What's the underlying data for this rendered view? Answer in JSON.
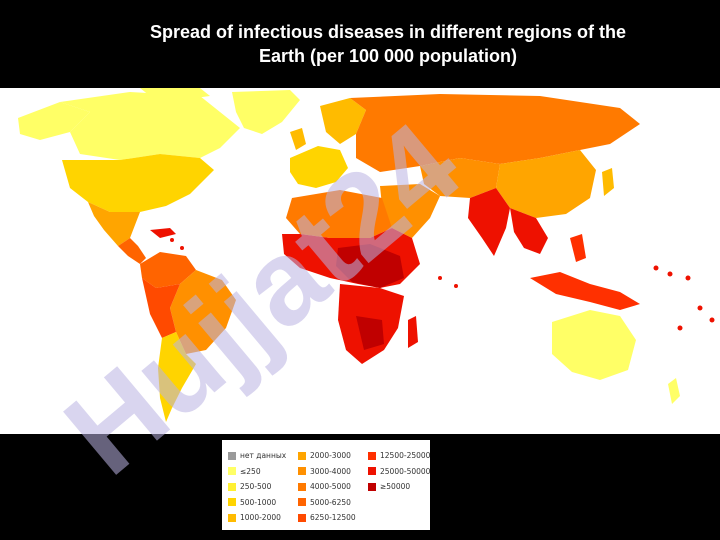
{
  "title": {
    "line1": "Spread of infectious diseases in different regions of the",
    "line2": "Earth (per 100 000 population)"
  },
  "watermark": {
    "text": "Hujjat24",
    "color": "#b9b2e2"
  },
  "legend": {
    "items": [
      {
        "label": "нет данных",
        "color": "#9a9a9a"
      },
      {
        "label": "≤250",
        "color": "#ffff66"
      },
      {
        "label": "250-500",
        "color": "#fff033"
      },
      {
        "label": "500-1000",
        "color": "#ffd400"
      },
      {
        "label": "1000-2000",
        "color": "#ffbb00"
      },
      {
        "label": "2000-3000",
        "color": "#ffa500"
      },
      {
        "label": "3000-4000",
        "color": "#ff9000"
      },
      {
        "label": "4000-5000",
        "color": "#ff7a00"
      },
      {
        "label": "5000-6250",
        "color": "#ff6400"
      },
      {
        "label": "6250-12500",
        "color": "#ff4a00"
      },
      {
        "label": "12500-25000",
        "color": "#ff3000"
      },
      {
        "label": "25000-50000",
        "color": "#ee1100"
      },
      {
        "label": "≥50000",
        "color": "#c00000"
      }
    ]
  },
  "colors": {
    "background": "#000000",
    "map_background": "#ffffff",
    "title_text": "#ffffff"
  }
}
